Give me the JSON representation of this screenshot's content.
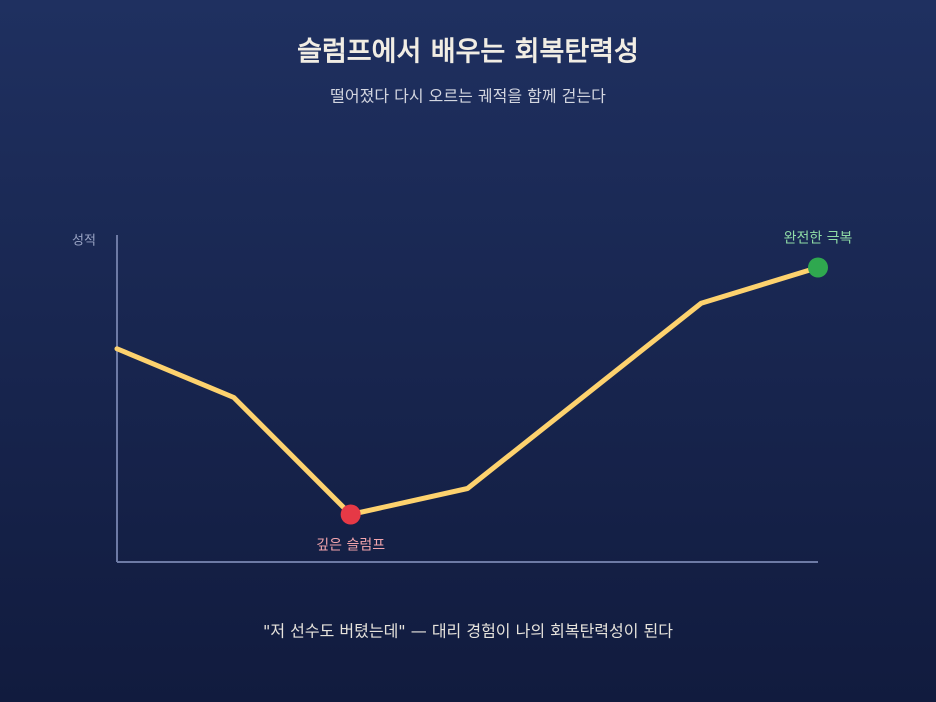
{
  "chart_data": {
    "type": "line",
    "title": "슬럼프에서 배우는 회복탄력성",
    "subtitle": "떨어졌다 다시 오르는 궤적을 함께 걷는다",
    "y_label": "성적",
    "caption": "\"저 선수도 버텼는데\" — 대리 경험이 나의 회복탄력성이 된다",
    "x": [
      0,
      1,
      2,
      3,
      5,
      6
    ],
    "values": [
      65,
      50,
      14,
      22,
      79,
      90
    ],
    "color": "#fdd26e",
    "xlim": [
      0,
      6
    ],
    "ylim": [
      0,
      100
    ],
    "annotations": [
      {
        "text": "깊은 슬럼프",
        "point": 2,
        "color": "#e63946",
        "text_color": "#f3a5ad",
        "position": "below"
      },
      {
        "text": "완전한 극복",
        "point": 5,
        "color": "#2fa84f",
        "text_color": "#8fdca6",
        "position": "above"
      }
    ]
  }
}
